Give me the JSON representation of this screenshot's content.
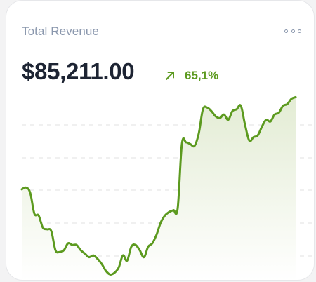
{
  "widget": {
    "title": "Total Revenue",
    "amount": "$85,211.00",
    "change_percent": "65,1%",
    "trend_icon": "arrow-up-right-icon",
    "menu_icon": "more-options-icon"
  },
  "colors": {
    "accent": "#5c9a1f",
    "title": "#8a97ad",
    "amount": "#1d2433",
    "fill_top": "#e3ecd4",
    "fill_bottom": "#ffffff",
    "gridline": "#e0e0e0"
  },
  "chart_data": {
    "type": "area",
    "title": "",
    "xlabel": "",
    "ylabel": "",
    "grid": true,
    "ylim": [
      0,
      100
    ],
    "values": [
      44,
      45,
      42,
      30,
      29,
      22,
      21,
      20,
      9,
      8,
      9,
      13,
      12,
      12,
      9,
      7,
      5,
      6,
      4,
      1,
      -3,
      -5,
      -4,
      -1,
      6,
      3,
      11,
      12,
      9,
      5,
      11,
      13,
      18,
      25,
      29,
      31,
      32,
      33,
      70,
      71,
      70,
      69,
      76,
      90,
      91,
      89,
      86,
      85,
      87,
      84,
      89,
      90,
      92,
      81,
      72,
      74,
      75,
      80,
      84,
      83,
      87,
      88,
      92,
      93,
      96,
      97
    ]
  }
}
